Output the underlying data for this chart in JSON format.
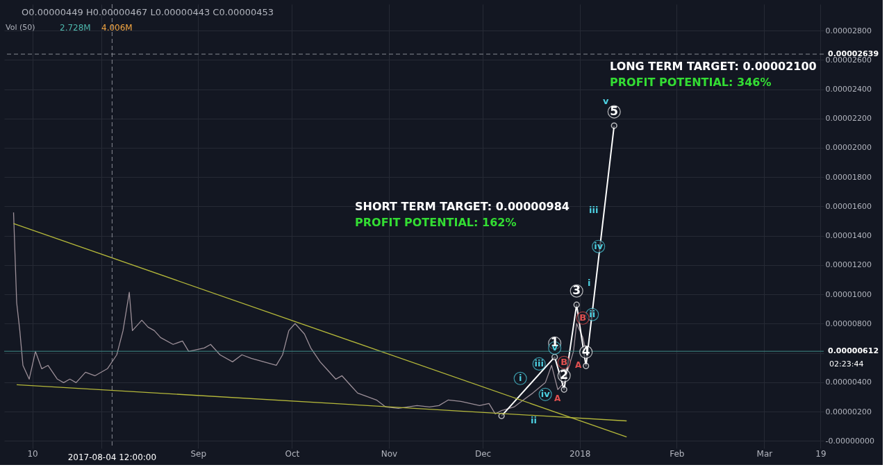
{
  "chart_data": {
    "type": "line",
    "annotations": [
      "O0.00000449 H0.00000467 L0.00000443 C0.00000453",
      "Vol (50)",
      "2.728M",
      "4.006M",
      "LONG TERM TARGET: 0.00002100",
      "PROFIT POTENTIAL: 346%",
      "SHORT TERM TARGET: 0.00000984",
      "PROFIT POTENTIAL: 162%",
      "02:23:44",
      "ii",
      "i",
      "iii",
      "v",
      "A",
      "A",
      {
        "text": "1",
        "x": "2017-12-24",
        "y": 5.73e-06
      },
      {
        "text": "2",
        "x": "2017-12-27",
        "y": 3.51e-06
      },
      {
        "text": "3",
        "x": "2017-12-31",
        "y": 9.29e-06
      },
      {
        "text": "4",
        "x": "2018-01-03",
        "y": 5.12e-06
      },
      {
        "text": "5",
        "x": "2018-01-12",
        "y": 2.151e-05
      },
      {
        "text": "i",
        "x": "2017-12-13",
        "y": 3.32e-06
      },
      {
        "text": "iii",
        "x": "2017-12-19",
        "y": 4.31e-06
      },
      {
        "text": "iv",
        "x": "2017-12-21",
        "y": 2.23e-06
      },
      {
        "text": "v",
        "x": "2017-12-24",
        "y": 5.4e-06
      },
      {
        "text": "ii",
        "x": "2018-01-05",
        "y": 7.68e-06
      },
      {
        "text": "iv",
        "x": "2018-01-07",
        "y": 1.232e-05
      },
      {
        "text": "B",
        "x": "2018-01-02",
        "y": 7.44e-06
      },
      {
        "text": "B",
        "x": "2017-12-27",
        "y": 4.41e-06
      }
    ],
    "series": [
      {
        "color": "#9c8f98",
        "x": [
          "2017-07-04",
          "2017-07-05",
          "2017-07-06",
          "2017-07-07",
          "2017-07-09",
          "2017-07-11",
          "2017-07-13",
          "2017-07-15",
          "2017-07-18",
          "2017-07-20",
          "2017-07-22",
          "2017-07-24",
          "2017-07-27",
          "2017-07-30",
          "2017-08-03",
          "2017-08-06",
          "2017-08-08",
          "2017-08-10",
          "2017-08-11",
          "2017-08-14",
          "2017-08-16",
          "2017-08-18",
          "2017-08-20",
          "2017-08-24",
          "2017-08-27",
          "2017-08-29",
          "2017-09-03",
          "2017-09-05",
          "2017-09-08",
          "2017-09-12",
          "2017-09-15",
          "2017-09-18",
          "2017-09-22",
          "2017-09-26",
          "2017-09-28",
          "2017-09-30",
          "2017-10-02",
          "2017-10-05",
          "2017-10-07",
          "2017-10-10",
          "2017-10-12",
          "2017-10-15",
          "2017-10-17",
          "2017-10-20",
          "2017-10-22",
          "2017-10-25",
          "2017-10-28",
          "2017-10-31",
          "2017-11-04",
          "2017-11-07",
          "2017-11-10",
          "2017-11-14",
          "2017-11-17",
          "2017-11-20",
          "2017-11-24",
          "2017-11-27",
          "2017-11-30",
          "2017-12-03",
          "2017-12-05",
          "2017-12-07",
          "2017-12-11",
          "2017-12-14",
          "2017-12-17",
          "2017-12-21",
          "2017-12-23",
          "2017-12-25",
          "2017-12-27",
          "2017-12-30",
          "2017-12-31",
          "2018-01-02",
          "2018-01-03"
        ],
        "values": [
          1.559e-05,
          9.43e-06,
          7.53e-06,
          5.16e-06,
          4.22e-06,
          6.11e-06,
          4.93e-06,
          5.16e-06,
          4.22e-06,
          3.98e-06,
          4.22e-06,
          3.98e-06,
          4.69e-06,
          4.45e-06,
          4.93e-06,
          5.88e-06,
          7.53e-06,
          1.014e-05,
          7.53e-06,
          8.24e-06,
          7.77e-06,
          7.53e-06,
          7.06e-06,
          6.59e-06,
          6.82e-06,
          6.11e-06,
          6.35e-06,
          6.59e-06,
          5.88e-06,
          5.4e-06,
          5.88e-06,
          5.64e-06,
          5.4e-06,
          5.16e-06,
          5.88e-06,
          7.53e-06,
          8.01e-06,
          7.3e-06,
          6.35e-06,
          5.4e-06,
          4.93e-06,
          4.22e-06,
          4.45e-06,
          3.74e-06,
          3.27e-06,
          3.03e-06,
          2.8e-06,
          2.32e-06,
          2.23e-06,
          2.32e-06,
          2.42e-06,
          2.32e-06,
          2.42e-06,
          2.8e-06,
          2.7e-06,
          2.56e-06,
          2.42e-06,
          2.56e-06,
          1.85e-06,
          2.08e-06,
          2.32e-06,
          2.8e-06,
          3.27e-06,
          3.98e-06,
          5.16e-06,
          3.51e-06,
          3.98e-06,
          6.11e-06,
          8.01e-06,
          7.06e-06,
          6.11e-06
        ]
      },
      {
        "color": "#ffffff",
        "marker": "circle",
        "x": [
          "2017-12-07",
          "2017-12-24",
          "2017-12-27",
          "2017-12-31",
          "2018-01-03",
          "2018-01-12"
        ],
        "values": [
          1.71e-06,
          5.73e-06,
          3.51e-06,
          9.29e-06,
          5.12e-06,
          2.151e-05
        ]
      },
      {
        "color": "#b5b83a",
        "x": [
          "2017-07-04",
          "2018-01-16"
        ],
        "values": [
          1.483e-05,
          2.8e-07
        ]
      },
      {
        "color": "#b5b83a",
        "x": [
          "2017-07-05",
          "2018-01-16"
        ],
        "values": [
          3.84e-06,
          1.37e-06
        ]
      }
    ],
    "ref_lines": [
      {
        "axis": "y",
        "value": 2.639e-05,
        "label": "0.00002639",
        "color": "#8a8d96",
        "line_style": "dashed"
      },
      {
        "axis": "y",
        "value": 6.12e-06,
        "label": "0.00000612",
        "color": "#3e8a86",
        "line_style": "solid"
      },
      {
        "axis": "x",
        "value": "2017-08-04T12:00",
        "label": "2017-08-04 12:00:00",
        "color": "#8a8d96",
        "line_style": "dashed"
      }
    ],
    "xlim": [
      "2017-07-01",
      "2018-03-20"
    ],
    "xticks": [
      {
        "value": "2017-07-10",
        "label": "10"
      },
      {
        "value": "2017-08-01",
        "label": null
      },
      {
        "value": "2017-09-01",
        "label": "Sep"
      },
      {
        "value": "2017-10-01",
        "label": "Oct"
      },
      {
        "value": "2017-11-01",
        "label": "Nov"
      },
      {
        "value": "2017-12-01",
        "label": "Dec"
      },
      {
        "value": "2018-01-01",
        "label": "2018"
      },
      {
        "value": "2018-02-01",
        "label": "Feb"
      },
      {
        "value": "2018-03-01",
        "label": "Mar"
      },
      {
        "value": "2018-03-19",
        "label": "19"
      }
    ],
    "ylim": [
      -5e-07,
      2.98e-05
    ],
    "yticks": [
      {
        "value": 0,
        "label": "-0.00000000"
      },
      {
        "value": 2e-06,
        "label": "0.00000200"
      },
      {
        "value": 4e-06,
        "label": "0.00000400"
      },
      {
        "value": 6e-06,
        "label": null
      },
      {
        "value": 8e-06,
        "label": "0.00000800"
      },
      {
        "value": 1e-05,
        "label": "0.00001000"
      },
      {
        "value": 1.2e-05,
        "label": "0.00001200"
      },
      {
        "value": 1.4e-05,
        "label": "0.00001400"
      },
      {
        "value": 1.6e-05,
        "label": "0.00001600"
      },
      {
        "value": 1.8e-05,
        "label": "0.00001800"
      },
      {
        "value": 2e-05,
        "label": "0.00002000"
      },
      {
        "value": 2.2e-05,
        "label": "0.00002200"
      },
      {
        "value": 2.4e-05,
        "label": "0.00002400"
      },
      {
        "value": 2.6e-05,
        "label": "0.00002600"
      },
      {
        "value": 2.8e-05,
        "label": "0.00002800"
      }
    ],
    "grid": true,
    "marker": "none",
    "line_style": "solid"
  }
}
